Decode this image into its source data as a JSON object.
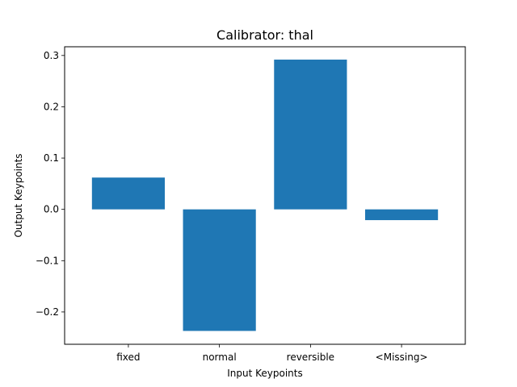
{
  "chart_data": {
    "type": "bar",
    "title": "Calibrator: thal",
    "xlabel": "Input Keypoints",
    "ylabel": "Output Keypoints",
    "categories": [
      "fixed",
      "normal",
      "reversible",
      "<Missing>"
    ],
    "values": [
      0.062,
      -0.237,
      0.292,
      -0.021
    ],
    "ylim": [
      -0.263,
      0.317
    ],
    "yticks": [
      -0.2,
      -0.1,
      0.0,
      0.1,
      0.2,
      0.3
    ],
    "ytick_labels": [
      "−0.2",
      "−0.1",
      "0.0",
      "0.1",
      "0.2",
      "0.3"
    ],
    "bar_color": "#1f77b4",
    "grid": false,
    "legend": "none"
  }
}
